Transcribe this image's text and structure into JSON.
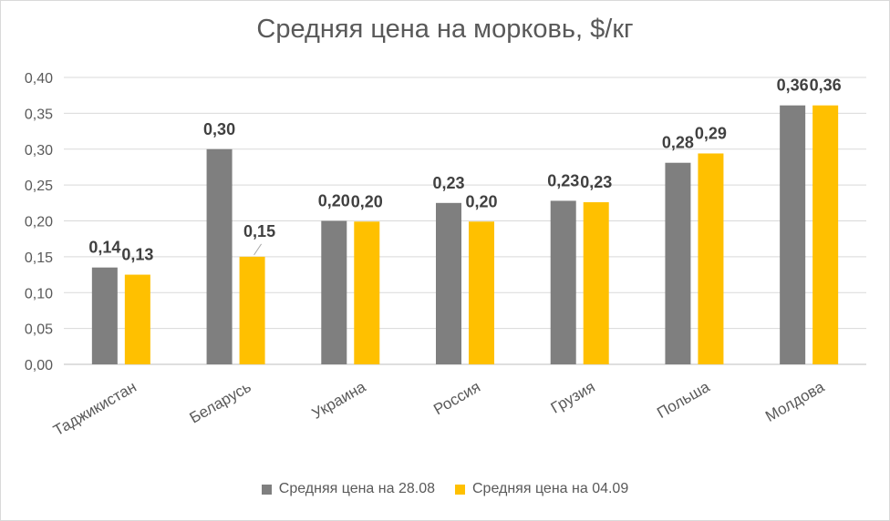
{
  "chart_data": {
    "type": "bar",
    "title": "Средняя цена на морковь, $/кг",
    "categories": [
      "Таджикистан",
      "Беларусь",
      "Украина",
      "Россия",
      "Грузия",
      "Польша",
      "Молдова"
    ],
    "series": [
      {
        "name": "Средняя цена на 28.08",
        "color": "#7f7f7f",
        "values": [
          0.135,
          0.3,
          0.2,
          0.225,
          0.228,
          0.281,
          0.361
        ],
        "labels": [
          "0,14",
          "0,30",
          "0,20",
          "0,23",
          "0,23",
          "0,28",
          "0,36"
        ]
      },
      {
        "name": "Средняя цена на 04.09",
        "color": "#ffc000",
        "values": [
          0.125,
          0.15,
          0.199,
          0.199,
          0.226,
          0.294,
          0.361
        ],
        "labels": [
          "0,13",
          "0,15",
          "0,20",
          "0,20",
          "0,23",
          "0,29",
          "0,36"
        ]
      }
    ],
    "ylim": [
      0,
      0.4
    ],
    "yticks": [
      "0,00",
      "0,05",
      "0,10",
      "0,15",
      "0,20",
      "0,25",
      "0,30",
      "0,35",
      "0,40"
    ],
    "grid": true,
    "legend_position": "bottom"
  }
}
